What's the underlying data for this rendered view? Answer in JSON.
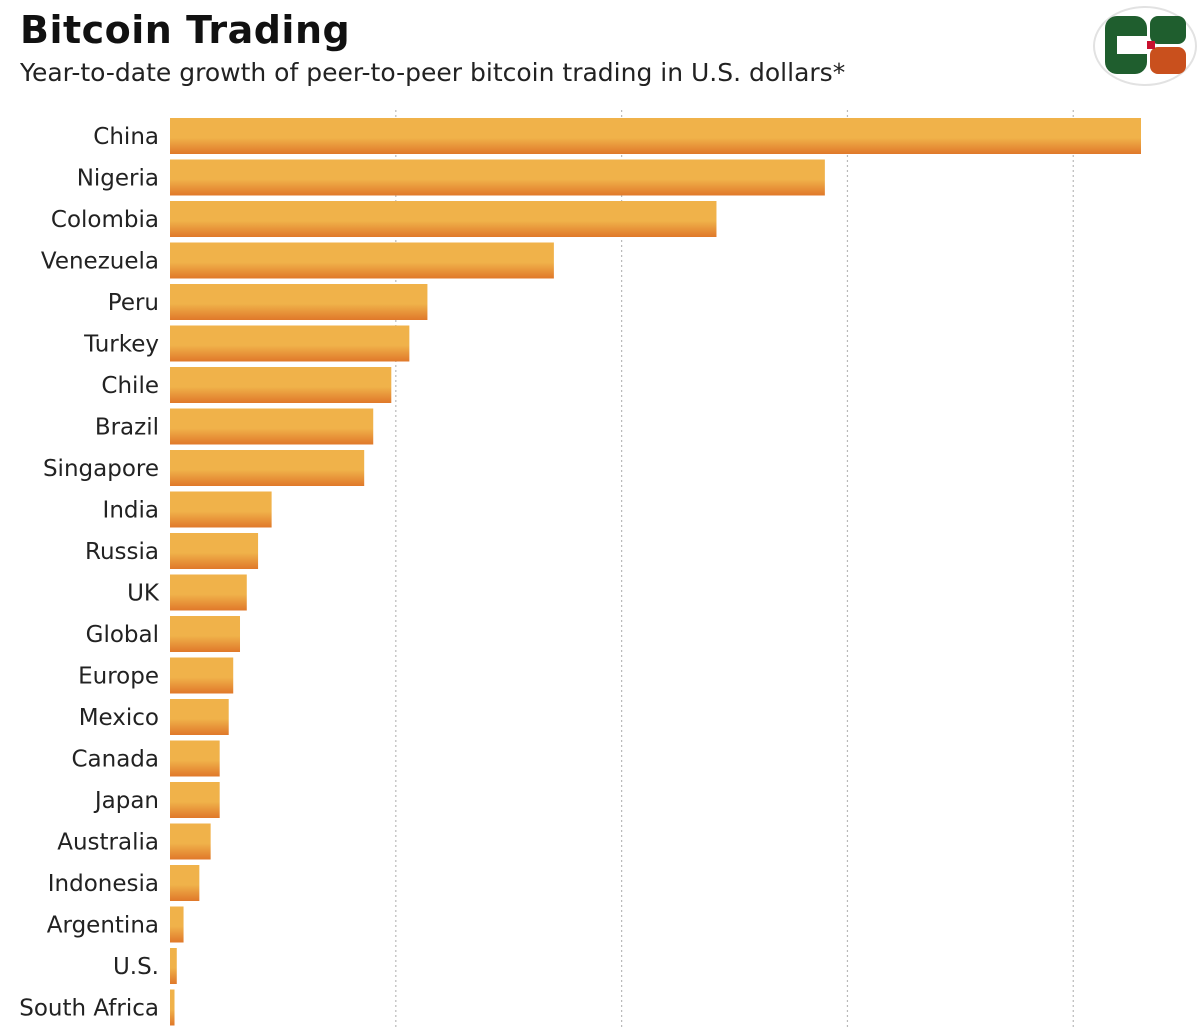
{
  "header": {
    "title": "Bitcoin Trading",
    "subtitle": "Year-to-date growth of peer-to-peer bitcoin trading in U.S. dollars*"
  },
  "logo": {
    "icon": "cb-logo-icon",
    "colors": {
      "left": "#1f5e2e",
      "top_right": "#1f5e2e",
      "bottom_right": "#c9501d",
      "center": "#c8102e"
    }
  },
  "colors": {
    "bar_light": "#f0b24a",
    "bar_dark": "#e0782a",
    "grid": "#b9b9b9",
    "label": "#222222"
  },
  "chart_data": {
    "type": "bar",
    "orientation": "horizontal",
    "title": "Bitcoin Trading",
    "subtitle": "Year-to-date growth of peer-to-peer bitcoin trading in U.S. dollars*",
    "xlabel": "",
    "ylabel": "",
    "grid": true,
    "xlim": [
      0,
      215
    ],
    "gridlines": [
      50,
      100,
      150,
      200
    ],
    "categories": [
      "China",
      "Nigeria",
      "Colombia",
      "Venezuela",
      "Peru",
      "Turkey",
      "Chile",
      "Brazil",
      "Singapore",
      "India",
      "Russia",
      "UK",
      "Global",
      "Europe",
      "Mexico",
      "Canada",
      "Japan",
      "Australia",
      "Indonesia",
      "Argentina",
      "U.S.",
      "South Africa"
    ],
    "values": [
      215,
      145,
      121,
      85,
      57,
      53,
      49,
      45,
      43,
      22.5,
      19.5,
      17,
      15.5,
      14,
      13,
      11,
      11,
      9,
      6.5,
      3,
      1.5,
      1
    ]
  }
}
